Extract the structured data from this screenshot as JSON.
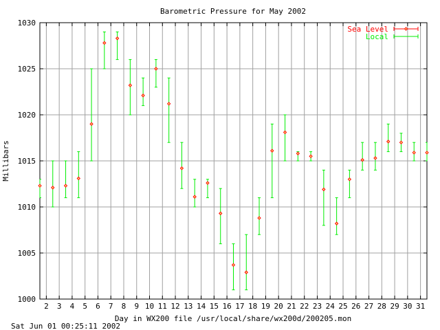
{
  "chart_data": {
    "type": "scatter",
    "title": "Barometric Pressure for May 2002",
    "xlabel": "Day in WX200 file /usr/local/share/wx200d/200205.mon",
    "ylabel": "Millibars",
    "footer": "Sat Jun 01 00:25:11 2002",
    "xlim": [
      1.5,
      31.5
    ],
    "ylim": [
      1000,
      1030
    ],
    "x_ticks": [
      2,
      3,
      4,
      5,
      6,
      7,
      8,
      9,
      10,
      11,
      12,
      13,
      14,
      15,
      16,
      17,
      18,
      19,
      20,
      21,
      22,
      23,
      24,
      25,
      26,
      27,
      28,
      29,
      30,
      31
    ],
    "y_ticks": [
      1000,
      1005,
      1010,
      1015,
      1020,
      1025,
      1030
    ],
    "grid": true,
    "legend_position": "top-right",
    "series": [
      {
        "name": "Sea Level",
        "color": "#ff0000",
        "x": [
          1.5,
          2.5,
          3.5,
          4.5,
          5.5,
          6.5,
          7.5,
          8.5,
          9.5,
          10.5,
          11.5,
          12.5,
          13.5,
          14.5,
          15.5,
          16.5,
          17.5,
          18.5,
          19.5,
          20.5,
          21.5,
          22.5,
          23.5,
          24.5,
          25.5,
          26.5,
          27.5,
          28.5,
          29.5,
          30.5,
          31.5
        ],
        "y": [
          1012.3,
          1012.1,
          1012.3,
          1013.1,
          1019.0,
          1027.8,
          1028.3,
          1023.2,
          1022.1,
          1025.0,
          1021.2,
          1014.2,
          1011.1,
          1012.6,
          1009.3,
          1003.7,
          1002.9,
          1008.8,
          1016.1,
          1018.1,
          1015.8,
          1015.5,
          1011.9,
          1008.2,
          1013.0,
          1015.1,
          1015.3,
          1017.1,
          1017.0,
          1015.9,
          1015.9
        ]
      },
      {
        "name": "Local",
        "color": "#00ee00",
        "x": [
          1.5,
          2.5,
          3.5,
          4.5,
          5.5,
          6.5,
          7.5,
          8.5,
          9.5,
          10.5,
          11.5,
          12.5,
          13.5,
          14.5,
          15.5,
          16.5,
          17.5,
          18.5,
          19.5,
          20.5,
          21.5,
          22.5,
          23.5,
          24.5,
          25.5,
          26.5,
          27.5,
          28.5,
          29.5,
          30.5,
          31.5
        ],
        "low": [
          1011,
          1010,
          1011,
          1011,
          1015,
          1025,
          1026,
          1020,
          1021,
          1023,
          1017,
          1012,
          1010,
          1011,
          1006,
          1001,
          1001,
          1007,
          1011,
          1015,
          1015,
          1015,
          1008,
          1007,
          1011,
          1014,
          1014,
          1016,
          1016,
          1015,
          1015
        ],
        "high": [
          1013,
          1015,
          1015,
          1016,
          1025,
          1029,
          1029,
          1026,
          1024,
          1026,
          1024,
          1017,
          1013,
          1013,
          1012,
          1006,
          1007,
          1011,
          1019,
          1020,
          1016,
          1016,
          1014,
          1011,
          1014,
          1017,
          1017,
          1019,
          1018,
          1017,
          1017
        ]
      }
    ]
  }
}
